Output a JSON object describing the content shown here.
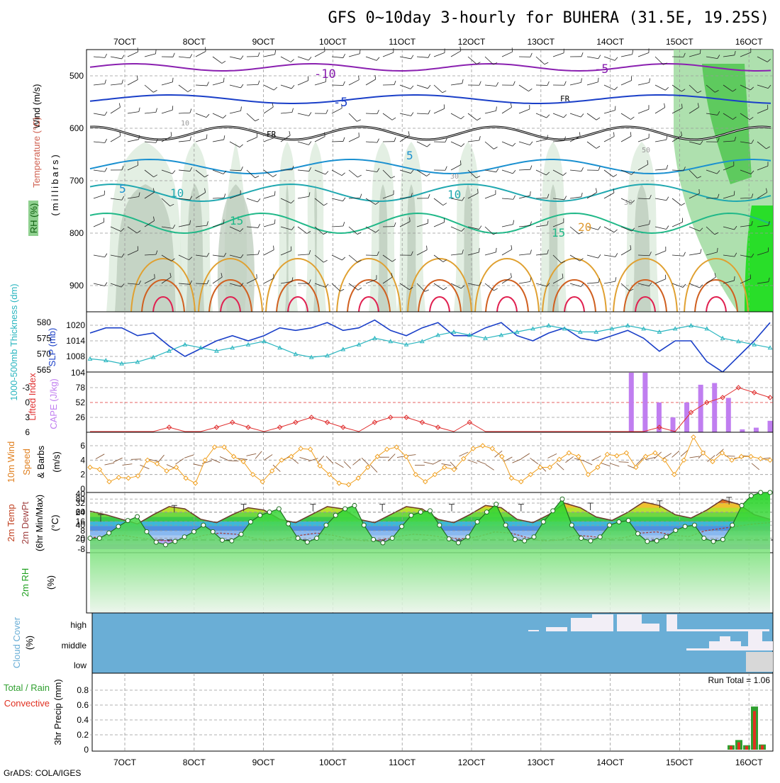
{
  "title": "GFS 0~10day 3-hourly for BUHERA (31.5E, 19.25S)",
  "footer": "GrADS: COLA/IGES",
  "colors": {
    "pressure_border": "#000000",
    "slp": "#1a3fc8",
    "thickness": "#2bb6c0",
    "lifted_index": "#e03030",
    "cape": "#c07ef0",
    "wind_speed": "#f0a020",
    "barbs": "#8a5a3a",
    "temp_fill": "#e07020",
    "dewpoint": "#a04040",
    "rh_line": "#208020",
    "rh_fill": "#40d040",
    "cloud_bg": "#6aaed6",
    "cloud_fill": "#f2eef6",
    "precip_total": "#30a030",
    "precip_conv": "#e03020"
  },
  "x_axis": {
    "date_labels": [
      "7OCT",
      "8OCT",
      "9OCT",
      "10OCT",
      "11OCT",
      "12OCT",
      "13OCT",
      "14OCT",
      "15OCT",
      "16OCT"
    ]
  },
  "panels": {
    "pressure": {
      "labels": {
        "wind": "Wind (m/s)",
        "temperature": "Temperature (°C)",
        "rh": "RH (%)",
        "units": "(millibars)"
      },
      "y_ticks": [
        "500",
        "600",
        "700",
        "800",
        "900"
      ],
      "contour_labels": {
        "t_m10": "-10",
        "t_m5a": "-5",
        "t_m5b": "-5",
        "fr1": "FR",
        "fr2": "FR",
        "t_5a": "5",
        "t_5b": "5",
        "t_10a": "10",
        "t_10b": "10",
        "t_15a": "15",
        "t_15b": "15",
        "t_20": "20",
        "rh_10": "10",
        "rh_30a": "30",
        "rh_30b": "30",
        "rh_50": "50"
      }
    },
    "slp": {
      "label_thick": "1000-500mb Thickness (dm)",
      "label_slp": "SLP (mb)",
      "thick_ticks": [
        "580",
        "575",
        "570",
        "565"
      ],
      "slp_ticks": [
        "1020",
        "1014",
        "1008"
      ]
    },
    "cape": {
      "label_li": "Lifted Index",
      "label_cape": "CAPE (J/kg)",
      "li_ticks": [
        "-3",
        "0",
        "3",
        "6"
      ],
      "cape_ticks": [
        "104",
        "78",
        "52",
        "26"
      ]
    },
    "wind": {
      "label_a": "10m Wind",
      "label_b": "Speed",
      "label_c": "& Barbs",
      "label_units": "(m/s)",
      "y_ticks": [
        "6",
        "4",
        "2",
        "0"
      ]
    },
    "temp": {
      "label_a": "2m Temp",
      "label_b": "2m DewPt",
      "label_c": "(6hr Min/Max)",
      "label_units": "(°C)",
      "y_ticks": [
        "40",
        "32",
        "24",
        "16",
        "8",
        "0",
        "-8"
      ]
    },
    "rh": {
      "label_a": "2m RH",
      "label_units": "(%)",
      "y_ticks": [
        "80",
        "60",
        "40",
        "20"
      ]
    },
    "cloud": {
      "label_a": "Cloud Cover",
      "label_units": "(%)",
      "levels": [
        "high",
        "middle",
        "low"
      ]
    },
    "precip": {
      "label_total": "Total / Rain",
      "label_conv": "Convective",
      "label_units": "3hr Precip (mm)",
      "run_total": "Run Total = 1.06",
      "y_ticks": [
        "0.8",
        "0.6",
        "0.4",
        "0.2",
        "0"
      ]
    }
  },
  "chart_data": {
    "type": "line",
    "title": "GFS 0~10day 3-hourly for BUHERA (31.5E, 19.25S)",
    "x_dates": [
      "7OCT",
      "8OCT",
      "9OCT",
      "10OCT",
      "11OCT",
      "12OCT",
      "13OCT",
      "14OCT",
      "15OCT",
      "16OCT"
    ],
    "slp_mb": [
      1017,
      1019,
      1019,
      1016,
      1017,
      1012,
      1008,
      1011,
      1014,
      1016,
      1014,
      1016,
      1019,
      1018,
      1019,
      1021,
      1018,
      1019,
      1022,
      1018,
      1016,
      1019,
      1021,
      1016,
      1016,
      1019,
      1021,
      1016,
      1014,
      1017,
      1019,
      1015,
      1014,
      1016,
      1018,
      1015,
      1010,
      1014,
      1014,
      1006,
      1002,
      1008,
      1014,
      1021
    ],
    "thickness_dm": [
      568.5,
      568,
      567,
      567.5,
      569,
      571,
      573,
      572,
      571,
      572,
      573,
      574,
      572,
      570,
      569,
      569.5,
      571.5,
      573,
      575,
      574,
      573,
      574,
      576,
      577,
      576,
      575,
      576,
      577,
      578,
      579,
      578,
      577,
      577,
      578,
      579,
      578,
      577,
      578,
      579,
      578,
      575,
      574,
      573,
      572
    ],
    "lifted_index": [
      6,
      6,
      6,
      6,
      6,
      5,
      6,
      6,
      5,
      4,
      5,
      6,
      5,
      4,
      3,
      4,
      5,
      6,
      4,
      3,
      3,
      4,
      5,
      6,
      4,
      6,
      6,
      6,
      6,
      6,
      6,
      6,
      6,
      6,
      6,
      6,
      5,
      6,
      2,
      0,
      -1,
      -3,
      -2,
      -1
    ],
    "cape_jkg": [
      0,
      0,
      0,
      0,
      0,
      0,
      0,
      0,
      0,
      0,
      0,
      0,
      0,
      0,
      0,
      0,
      0,
      0,
      0,
      0,
      0,
      0,
      0,
      0,
      0,
      0,
      0,
      0,
      0,
      0,
      0,
      0,
      0,
      0,
      0,
      0,
      0,
      0,
      0,
      104,
      104,
      52,
      26,
      52,
      83,
      86,
      60,
      5,
      8,
      20
    ],
    "wind_speed_ms": [
      3,
      2.7,
      1,
      1.6,
      1.5,
      1.8,
      4,
      3.5,
      2.5,
      3,
      1.5,
      0.8,
      4,
      5.8,
      5.8,
      4.5,
      3.8,
      2,
      1,
      2.5,
      4,
      4.5,
      5.6,
      5.5,
      3.2,
      2,
      0.8,
      0.6,
      1.5,
      3,
      4.5,
      5.5,
      5.8,
      4.5,
      2,
      1,
      2,
      3,
      2.7,
      4.2,
      5.6,
      6,
      5.6,
      4.5,
      1.5,
      1,
      2,
      3,
      3,
      4.1,
      5,
      4.5,
      2,
      3,
      4.8,
      4.6,
      5,
      3,
      4.5,
      5,
      4,
      2,
      4,
      7.2,
      5,
      3.8,
      5,
      4,
      4.5,
      4.5,
      4.2,
      4
    ],
    "temp_2m_c": [
      25,
      22,
      18,
      14,
      22,
      29,
      27,
      18,
      15,
      22,
      28,
      26,
      18,
      15,
      22,
      29,
      27,
      18,
      15,
      22,
      29,
      27,
      18,
      15,
      22,
      30,
      28,
      18,
      15,
      22,
      32,
      28,
      20,
      17,
      24,
      33,
      30,
      22,
      19,
      26,
      35,
      31,
      22,
      18
    ],
    "temp_max_6hr_c": [
      22,
      30,
      31,
      31,
      31,
      31,
      31,
      32,
      34,
      37
    ],
    "temp_min_6hr_c": [
      11,
      12,
      13,
      13,
      13,
      14,
      15,
      15,
      17
    ],
    "dewpoint_2m_c": [
      2,
      3,
      4,
      2,
      0,
      -1,
      0,
      4,
      6,
      5,
      2,
      -1,
      1,
      4,
      6,
      4,
      1,
      -1,
      0,
      3,
      5,
      4,
      2,
      1,
      3,
      7,
      6,
      2,
      -1,
      0,
      4,
      3,
      1,
      2,
      6,
      7,
      4,
      3,
      8,
      10,
      12,
      14,
      15
    ],
    "rh_2m_pct": [
      20,
      20,
      28,
      38,
      47,
      53,
      30,
      14,
      10,
      15,
      22,
      30,
      40,
      30,
      17,
      16,
      26,
      45,
      55,
      60,
      65,
      42,
      20,
      14,
      20,
      40,
      55,
      65,
      70,
      40,
      18,
      13,
      20,
      38,
      55,
      60,
      62,
      40,
      19,
      13,
      22,
      45,
      60,
      72,
      40,
      18,
      16,
      22,
      45,
      62,
      80,
      40,
      20,
      16,
      22,
      40,
      45,
      47,
      27,
      15,
      16,
      22,
      32,
      38,
      40,
      20,
      15,
      18,
      40,
      70,
      85,
      90,
      90
    ]
  }
}
